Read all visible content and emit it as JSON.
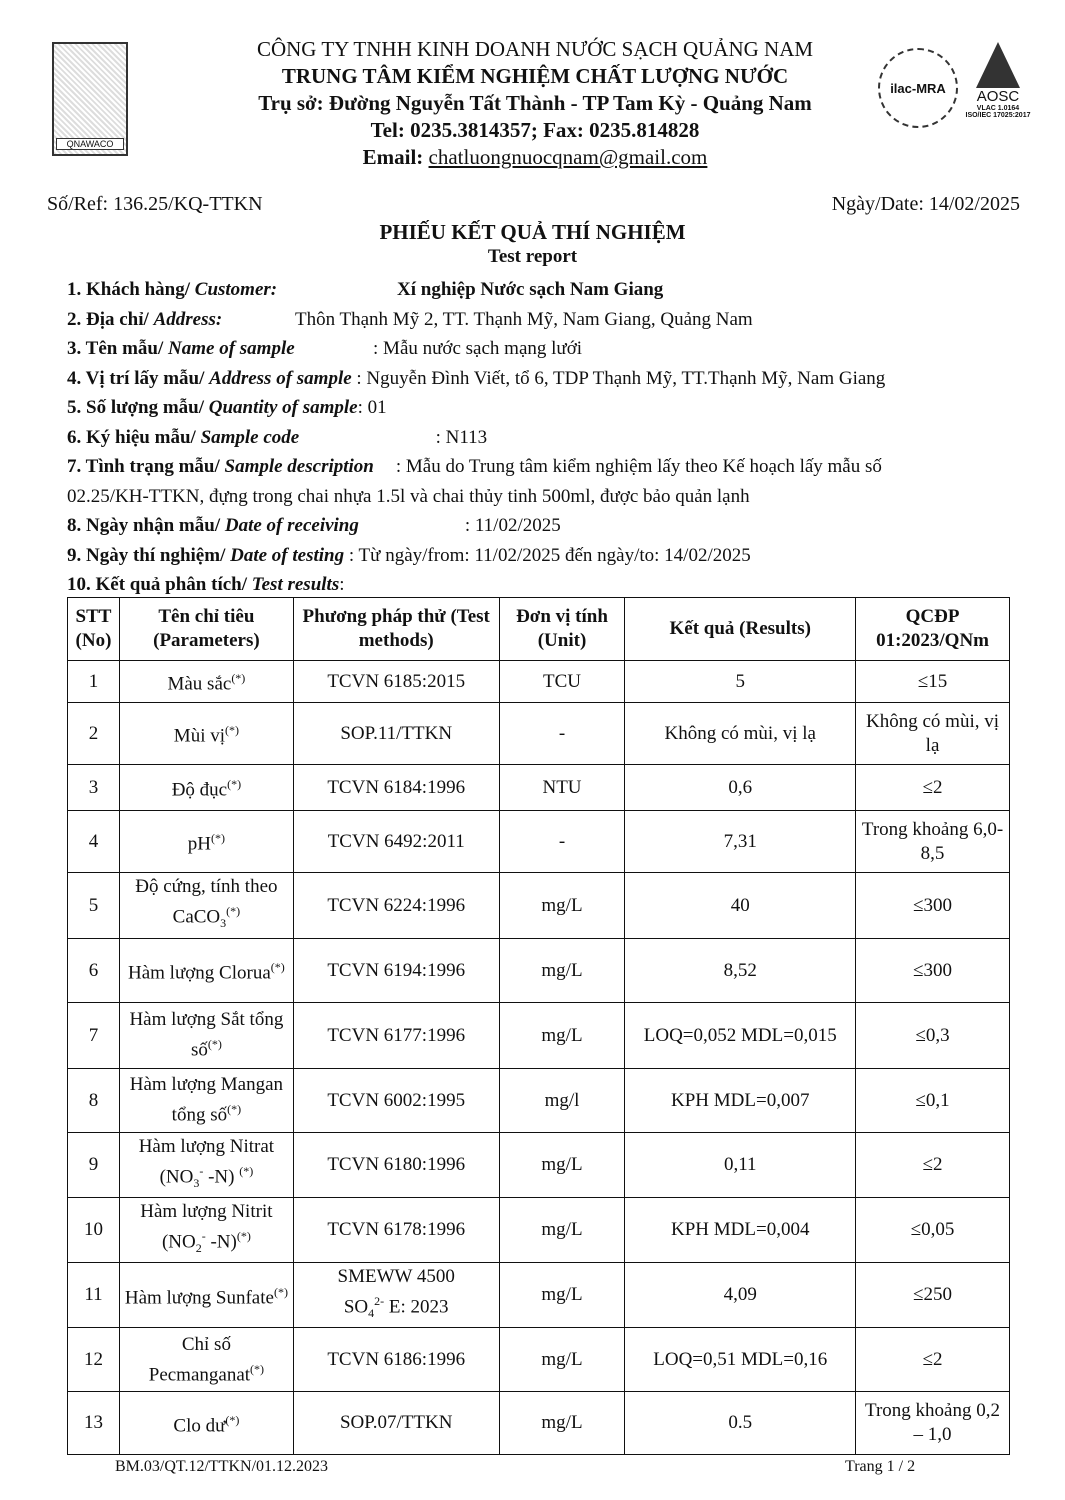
{
  "header": {
    "company": "CÔNG TY TNHH KINH DOANH NƯỚC SẠCH QUẢNG NAM",
    "center": "TRUNG TÂM KIỂM NGHIỆM CHẤT LƯỢNG NƯỚC",
    "address": "Trụ sở: Đường Nguyễn Tất Thành - TP Tam Kỳ -  Quảng Nam",
    "tel": "Tel: 0235.3814357; Fax: 0235.814828",
    "email_label": "Email: ",
    "email": "chatluongnuocqnam@gmail.com",
    "logo_left": "QNAWACO",
    "logo_ilac": "ilac-MRA",
    "logo_aosc": "AOSC",
    "aosc_sub1": "VLAC 1.0164",
    "aosc_sub2": "ISO/IEC 17025:2017"
  },
  "ref": "Số/Ref: 136.25/KQ-TTKN",
  "date": "Ngày/Date: 14/02/2025",
  "title": "PHIẾU KẾT QUẢ THÍ NGHIỆM",
  "subtitle": "Test report",
  "fields": [
    {
      "lbl": "1. Khách hàng/ ",
      "en": "Customer:",
      "val": "Xí nghiệp Nước sạch Nam Giang"
    },
    {
      "lbl": "2. Địa chỉ/ ",
      "en": "Address:",
      "val": "Thôn Thạnh Mỹ 2, TT. Thạnh Mỹ, Nam Giang, Quảng Nam"
    },
    {
      "lbl": "3. Tên mẫu/ ",
      "en": "Name of sample",
      "val": ": Mẫu nước sạch mạng lưới"
    },
    {
      "lbl": "4. Vị trí lấy mẫu/ ",
      "en": "Address of sample",
      "val": " : Nguyễn Đình Viết, tổ 6, TDP Thạnh Mỹ, TT.Thạnh Mỹ, Nam Giang"
    },
    {
      "lbl": "5. Số lượng mẫu/ ",
      "en": "Quantity of sample",
      "val": ": 01"
    },
    {
      "lbl": "6. Ký hiệu mẫu/ ",
      "en": "Sample code",
      "val": ": N113"
    },
    {
      "lbl": "7. Tình trạng mẫu/ ",
      "en": "Sample description",
      "val": ": Mẫu do Trung tâm kiểm nghiệm lấy theo Kế hoạch lấy mẫu số"
    },
    {
      "lbl": "",
      "en": "",
      "val": "02.25/KH-TTKN, đựng trong chai nhựa 1.5l và chai thủy tinh 500ml, được bảo quản lạnh"
    },
    {
      "lbl": "8. Ngày nhận mẫu/ ",
      "en": "Date of receiving",
      "val": ": 11/02/2025"
    },
    {
      "lbl": "9. Ngày thí nghiệm/ ",
      "en": "Date of testing",
      "val": " : Từ ngày/from: 11/02/2025  đến ngày/to: 14/02/2025"
    },
    {
      "lbl": "10. Kết quả phân tích/ ",
      "en": "Test results",
      "val": ":"
    }
  ],
  "table": {
    "headers": [
      "STT (No)",
      "Tên chỉ tiêu (Parameters)",
      "Phương pháp thử (Test methods)",
      "Đơn vị tính (Unit)",
      "Kết quả (Results)",
      "QCĐP 01:2023/QNm"
    ],
    "rows": [
      {
        "no": "1",
        "param": [
          [
            "Màu sắc",
            ""
          ],
          [
            "(*)",
            "sup"
          ]
        ],
        "method": "TCVN 6185:2015",
        "unit": "TCU",
        "result": "5",
        "limit": "≤15",
        "h": 42
      },
      {
        "no": "2",
        "param": [
          [
            "Mùi vị",
            ""
          ],
          [
            "(*)",
            "sup"
          ]
        ],
        "method": "SOP.11/TTKN",
        "unit": "-",
        "result": "Không có mùi, vị lạ",
        "limit": "Không có mùi, vị lạ",
        "h": 62
      },
      {
        "no": "3",
        "param": [
          [
            "Độ đục",
            ""
          ],
          [
            "(*)",
            "sup"
          ]
        ],
        "method": "TCVN 6184:1996",
        "unit": "NTU",
        "result": "0,6",
        "limit": "≤2",
        "h": 46
      },
      {
        "no": "4",
        "param": [
          [
            "pH",
            ""
          ],
          [
            "(*)",
            "sup"
          ]
        ],
        "method": "TCVN 6492:2011",
        "unit": "-",
        "result": "7,31",
        "limit": "Trong khoảng 6,0-8,5",
        "h": 62
      },
      {
        "no": "5",
        "param": [
          [
            "Độ cứng, tính theo CaCO",
            ""
          ],
          [
            "3",
            "sub"
          ],
          [
            "(*)",
            "sup"
          ]
        ],
        "method": "TCVN 6224:1996",
        "unit": "mg/L",
        "result": "40",
        "limit": "≤300",
        "h": 66
      },
      {
        "no": "6",
        "param": [
          [
            "Hàm lượng Clorua",
            ""
          ],
          [
            "(*)",
            "sup"
          ]
        ],
        "method": "TCVN 6194:1996",
        "unit": "mg/L",
        "result": "8,52",
        "limit": "≤300",
        "h": 64
      },
      {
        "no": "7",
        "param": [
          [
            "Hàm lượng Sắt tổng số",
            ""
          ],
          [
            "(*)",
            "sup"
          ]
        ],
        "method": "TCVN 6177:1996",
        "unit": "mg/L",
        "result": "LOQ=0,052 MDL=0,015",
        "limit": "≤0,3",
        "h": 66
      },
      {
        "no": "8",
        "param": [
          [
            "Hàm lượng Mangan tổng số",
            ""
          ],
          [
            "(*)",
            "sup"
          ]
        ],
        "method": "TCVN 6002:1995",
        "unit": "mg/l",
        "result": "KPH MDL=0,007",
        "limit": "≤0,1",
        "h": 64
      },
      {
        "no": "9",
        "param": [
          [
            "Hàm lượng Nitrat (NO",
            ""
          ],
          [
            "3",
            "sub"
          ],
          [
            "-",
            "sup"
          ],
          [
            " -N) ",
            ""
          ],
          [
            "(*)",
            "sup"
          ]
        ],
        "method": "TCVN 6180:1996",
        "unit": "mg/L",
        "result": "0,11",
        "limit": "≤2",
        "h": 64
      },
      {
        "no": "10",
        "param": [
          [
            "Hàm lượng Nitrit (NO",
            ""
          ],
          [
            "2",
            "sub"
          ],
          [
            "-",
            "sup"
          ],
          [
            " -N)",
            ""
          ],
          [
            "(*)",
            "sup"
          ]
        ],
        "method": "TCVN 6178:1996",
        "unit": "mg/L",
        "result": "KPH MDL=0,004",
        "limit": "≤0,05",
        "h": 64
      },
      {
        "no": "11",
        "param": [
          [
            "Hàm lượng Sunfate",
            ""
          ],
          [
            "(*)",
            "sup"
          ]
        ],
        "method": "SMEWW 4500 SO4 2- E: 2023",
        "unit": "mg/L",
        "result": "4,09",
        "limit": "≤250",
        "h": 64
      },
      {
        "no": "12",
        "param": [
          [
            "Chỉ số Pecmanganat",
            ""
          ],
          [
            "(*)",
            "sup"
          ]
        ],
        "method": "TCVN 6186:1996",
        "unit": "mg/L",
        "result": "LOQ=0,51 MDL=0,16",
        "limit": "≤2",
        "h": 64
      },
      {
        "no": "13",
        "param": [
          [
            "Clo dư",
            ""
          ],
          [
            "(*)",
            "sup"
          ]
        ],
        "method": "SOP.07/TTKN",
        "unit": "mg/L",
        "result": "0.5",
        "limit": "Trong khoảng 0,2 – 1,0",
        "h": 63
      }
    ]
  },
  "footer": {
    "form_code": "BM.03/QT.12/TTKN/01.12.2023",
    "page": "Trang 1 / 2"
  }
}
